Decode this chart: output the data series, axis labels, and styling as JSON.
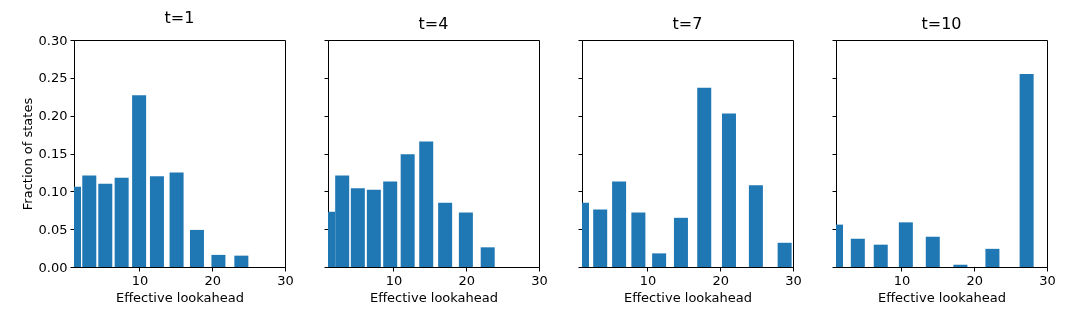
{
  "chart_data": [
    {
      "type": "bar",
      "title": "t=1",
      "xlabel": "Effective lookahead",
      "ylabel": "Fraction of states",
      "color": "#1f77b4",
      "x": [
        1.0,
        3.1,
        5.3,
        7.55,
        9.95,
        12.4,
        15.1,
        17.9,
        20.85,
        24.0
      ],
      "values": [
        0.106,
        0.121,
        0.11,
        0.118,
        0.227,
        0.12,
        0.125,
        0.049,
        0.016,
        0.015
      ],
      "xlim": [
        1,
        30
      ],
      "xticks": [
        10,
        20,
        30
      ],
      "ylim": [
        0,
        0.3
      ],
      "yticks": [
        {
          "value": 0,
          "label": "0.00"
        },
        {
          "value": 0.05,
          "label": "0.05"
        },
        {
          "value": 0.1,
          "label": "0.10"
        },
        {
          "value": 0.15,
          "label": "0.15"
        },
        {
          "value": 0.2,
          "label": "0.20"
        },
        {
          "value": 0.25,
          "label": "0.25"
        },
        {
          "value": 0.3,
          "label": "0.30"
        }
      ]
    },
    {
      "type": "bar",
      "title": "t=4",
      "xlabel": "Effective lookahead",
      "color": "#1f77b4",
      "x": [
        1.0,
        2.95,
        5.1,
        7.3,
        9.55,
        11.95,
        14.5,
        17.1,
        19.95,
        22.95
      ],
      "values": [
        0.073,
        0.121,
        0.104,
        0.102,
        0.113,
        0.149,
        0.166,
        0.085,
        0.072,
        0.026
      ],
      "xlim": [
        1,
        30
      ],
      "xticks": [
        10,
        20,
        30
      ],
      "ylim": [
        0,
        0.3
      ],
      "yticks": [
        {
          "value": 0,
          "label": null
        },
        {
          "value": 0.05,
          "label": null
        },
        {
          "value": 0.1,
          "label": null
        },
        {
          "value": 0.15,
          "label": null
        },
        {
          "value": 0.2,
          "label": null
        },
        {
          "value": 0.25,
          "label": null
        },
        {
          "value": 0.3,
          "label": null
        }
      ],
      "tick_labels": "x"
    },
    {
      "type": "bar",
      "title": "t=7",
      "xlabel": "Effective lookahead",
      "color": "#1f77b4",
      "x": [
        1.0,
        3.5,
        6.1,
        8.75,
        11.6,
        14.6,
        17.8,
        21.2,
        24.9,
        28.85
      ],
      "values": [
        0.085,
        0.076,
        0.113,
        0.072,
        0.018,
        0.065,
        0.237,
        0.203,
        0.108,
        0.032
      ],
      "xlim": [
        1,
        30
      ],
      "xticks": [
        10,
        20,
        30
      ],
      "ylim": [
        0,
        0.3
      ],
      "yticks": [
        {
          "value": 0,
          "label": null
        },
        {
          "value": 0.05,
          "label": null
        },
        {
          "value": 0.1,
          "label": null
        },
        {
          "value": 0.15,
          "label": null
        },
        {
          "value": 0.2,
          "label": null
        },
        {
          "value": 0.25,
          "label": null
        },
        {
          "value": 0.3,
          "label": null
        }
      ],
      "tick_labels": "x"
    },
    {
      "type": "bar",
      "title": "t=10",
      "xlabel": "Effective lookahead",
      "color": "#1f77b4",
      "x": [
        1.0,
        4.0,
        7.15,
        10.6,
        14.3,
        18.1,
        22.5,
        27.2
      ],
      "values": [
        0.056,
        0.0375,
        0.0295,
        0.059,
        0.04,
        0.003,
        0.024,
        0.255
      ],
      "xlim": [
        1,
        30
      ],
      "xticks": [
        10,
        20,
        30
      ],
      "ylim": [
        0,
        0.3
      ],
      "yticks": [
        {
          "value": 0,
          "label": null
        },
        {
          "value": 0.05,
          "label": null
        },
        {
          "value": 0.1,
          "label": null
        },
        {
          "value": 0.15,
          "label": null
        },
        {
          "value": 0.2,
          "label": null
        },
        {
          "value": 0.25,
          "label": null
        },
        {
          "value": 0.3,
          "label": null
        }
      ],
      "tick_labels": "x"
    }
  ]
}
